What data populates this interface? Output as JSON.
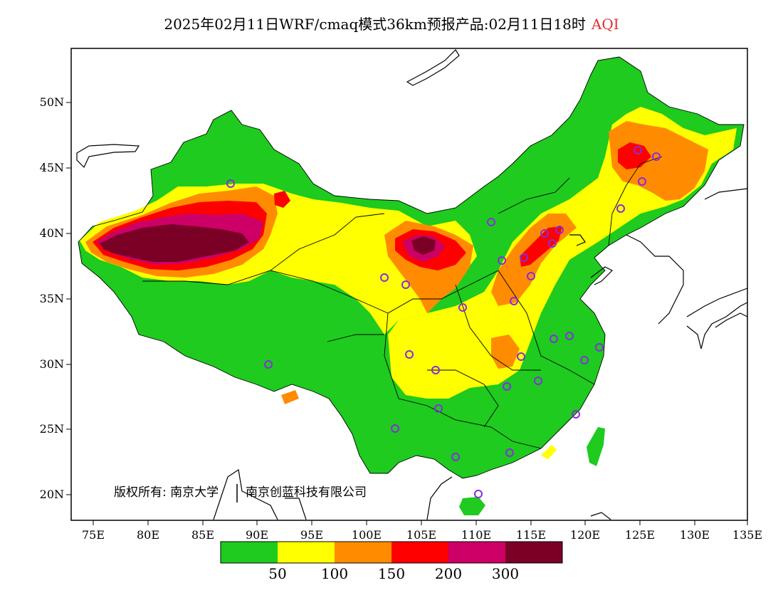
{
  "title": {
    "main": "2025年02月11日WRF/cmaq模式36km预报产品:02月11日18时",
    "product": "AQI"
  },
  "axes": {
    "x_ticks": [
      "75E",
      "80E",
      "85E",
      "90E",
      "95E",
      "100E",
      "105E",
      "110E",
      "115E",
      "120E",
      "125E",
      "130E",
      "135E"
    ],
    "y_ticks": [
      "50N",
      "45N",
      "40N",
      "35N",
      "30N",
      "25N",
      "20N"
    ]
  },
  "copyright": {
    "left": "版权所有: 南京大学",
    "right": "南京创蓝科技有限公司"
  },
  "colors": {
    "good": "#1ecb1e",
    "moderate": "#ffff00",
    "sensitive": "#ff8c00",
    "unhealthy": "#ff0000",
    "very_unhealthy": "#cc0066",
    "hazardous": "#7a0026",
    "station_marker": "#8a2be2",
    "coastline": "#000000"
  },
  "legend": {
    "labels": [
      "50",
      "100",
      "150",
      "200",
      "300"
    ]
  }
}
